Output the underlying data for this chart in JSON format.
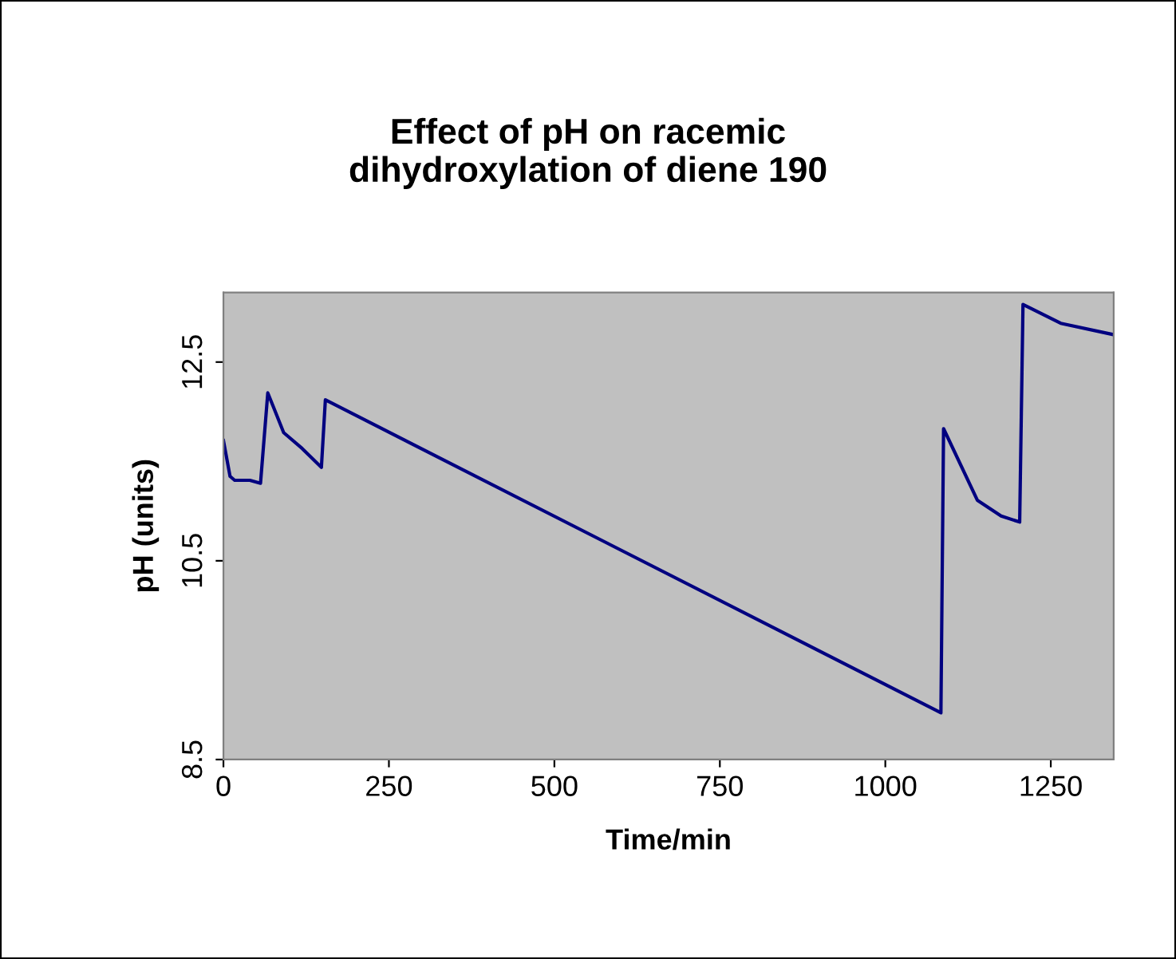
{
  "chart_data": {
    "type": "line",
    "title": "Effect of pH on racemic\ndihydroxylation of diene 190",
    "xlabel": "Time/min",
    "ylabel": "pH (units)",
    "series": [
      {
        "color": "#000080",
        "x": [
          0,
          10,
          17,
          40,
          56,
          67,
          91,
          119,
          148,
          154,
          1084,
          1088,
          1139,
          1175,
          1203,
          1208,
          1265,
          1342
        ],
        "values": [
          11.71,
          11.35,
          11.31,
          11.31,
          11.28,
          12.19,
          11.79,
          11.63,
          11.44,
          12.12,
          8.97,
          11.83,
          11.11,
          10.95,
          10.89,
          13.08,
          12.89,
          12.78
        ]
      }
    ],
    "xlim": [
      0,
      1345
    ],
    "ylim": [
      8.5,
      13.2
    ],
    "xticks": [
      0,
      250,
      500,
      750,
      1000,
      1250
    ],
    "yticks": [
      8.5,
      10.5,
      12.5
    ],
    "grid": false,
    "legend": false,
    "marker": "none",
    "line_style": "solid"
  }
}
